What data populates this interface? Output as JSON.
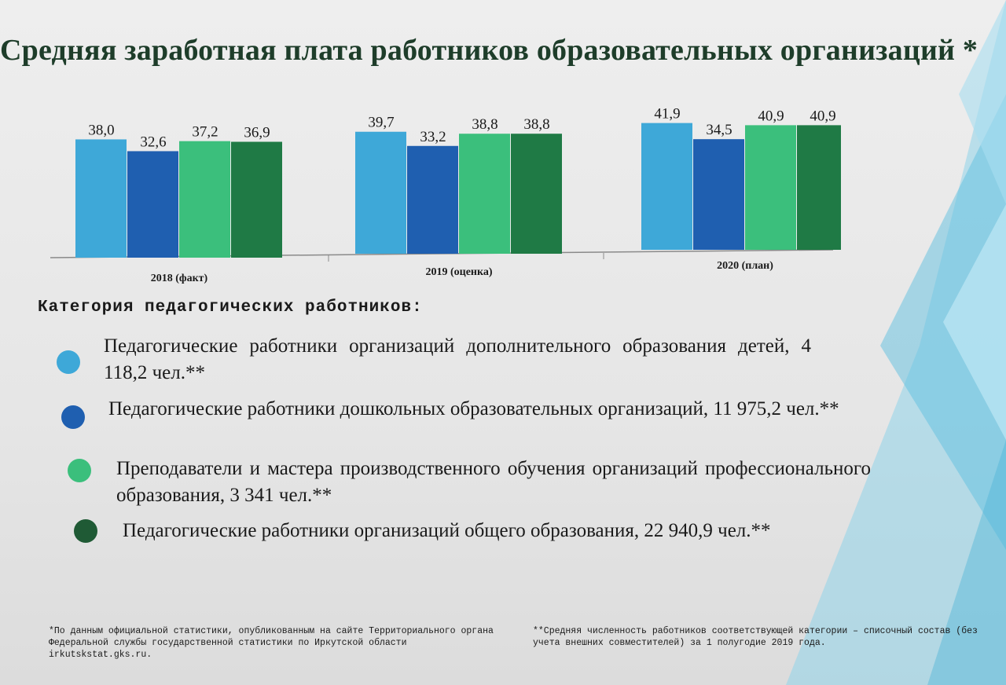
{
  "title": "Средняя заработная плата работников образовательных организаций *",
  "chart_data": {
    "type": "bar",
    "categories": [
      "2018 (факт)",
      "2019 (оценка)",
      "2020 (план)"
    ],
    "series": [
      {
        "name": "Педагогические работники организаций дополнительного образования детей",
        "values": [
          38.0,
          39.7,
          41.9
        ],
        "labels": [
          "38,0",
          "39,7",
          "41,9"
        ],
        "color": "#3ea8d8"
      },
      {
        "name": "Педагогические работники дошкольных образовательных организаций",
        "values": [
          32.6,
          33.2,
          34.5
        ],
        "labels": [
          "32,6",
          "33,2",
          "34,5"
        ],
        "color": "#1f5fb0"
      },
      {
        "name": "Преподаватели и мастера производственного обучения организаций профессионального образования",
        "values": [
          37.2,
          38.8,
          40.9
        ],
        "labels": [
          "37,2",
          "38,8",
          "40,9"
        ],
        "color": "#3bbf7c"
      },
      {
        "name": "Педагогические работники организаций общего образования",
        "values": [
          36.9,
          38.8,
          40.9
        ],
        "labels": [
          "36,9",
          "38,8",
          "40,9"
        ],
        "color": "#1f7a45"
      }
    ],
    "ylim": [
      0,
      45
    ],
    "grid": false,
    "legend": "bottom"
  },
  "legend": {
    "heading": "Категория педагогических работников:",
    "items": [
      {
        "text": "Педагогические работники организаций дополнительного образования детей, 4 118,2 чел.**",
        "color": "#3ea8d8"
      },
      {
        "text": "Педагогические работники дошкольных образовательных организаций, 11 975,2 чел.**",
        "color": "#1f5fb0"
      },
      {
        "text": "Преподаватели и мастера производственного обучения организаций профессионального образования, 3 341 чел.**",
        "color": "#3bbf7c"
      },
      {
        "text": "Педагогические работники организаций общего образования, 22 940,9 чел.**",
        "color": "#1f5a35"
      }
    ]
  },
  "footnotes": {
    "left": "*По данным официальной статистики, опубликованным на сайте Территориального органа Федеральной службы государственной статистики по Иркутской области irkutskstat.gks.ru.",
    "right": "**Средняя численность работников соответствующей категории – списочный состав (без учета внешних совместителей) за 1 полугодие 2019 года."
  }
}
